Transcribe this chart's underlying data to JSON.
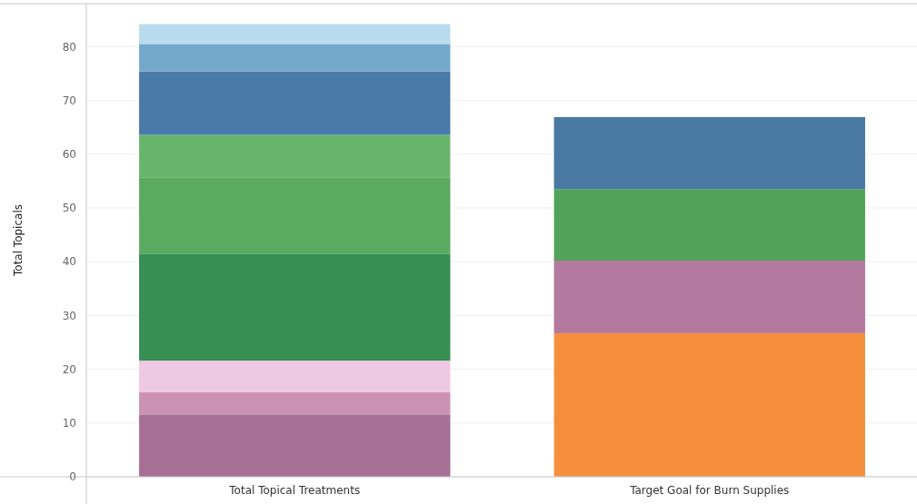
{
  "chart_data": {
    "type": "bar",
    "stacked": true,
    "ylabel": "Total Topicals",
    "categories": [
      "Total Topical Treatments",
      "Target Goal for Burn Supplies"
    ],
    "series": [
      {
        "color": "#a66f95",
        "values": [
          11.6,
          null
        ]
      },
      {
        "color": "#cb92b3",
        "values": [
          4.1,
          null
        ]
      },
      {
        "color": "#efc8e2",
        "values": [
          5.9,
          null
        ]
      },
      {
        "color": "#378f53",
        "values": [
          19.8,
          null
        ]
      },
      {
        "color": "#5aaa60",
        "values": [
          14.2,
          null
        ]
      },
      {
        "color": "#67b56c",
        "values": [
          8,
          null
        ]
      },
      {
        "color": "#4a7aa8",
        "values": [
          11.8,
          null
        ]
      },
      {
        "color": "#74a9cc",
        "values": [
          5.1,
          null
        ]
      },
      {
        "color": "#b7dcee",
        "values": [
          3.7,
          null
        ]
      },
      {
        "color": "#f58f3c",
        "values": [
          null,
          26.7
        ]
      },
      {
        "color": "#b3799e",
        "values": [
          null,
          13.5
        ]
      },
      {
        "color": "#52a25a",
        "values": [
          null,
          13.3
        ]
      },
      {
        "color": "#4978a2",
        "values": [
          null,
          13.4
        ]
      }
    ],
    "ylim": [
      0,
      88
    ],
    "yticks": [
      0,
      10,
      20,
      30,
      40,
      50,
      60,
      70,
      80
    ],
    "grid": "y"
  }
}
